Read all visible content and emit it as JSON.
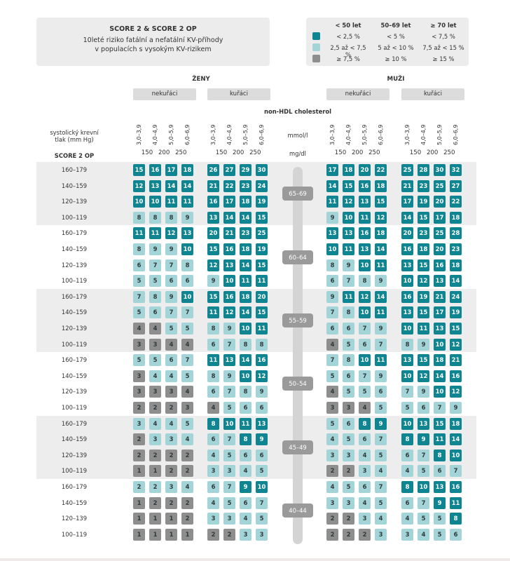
{
  "title": {
    "line1": "SCORE 2 & SCORE 2 OP",
    "line2": "10leté riziko fatální a nefatální KV-příhody",
    "line3": "v populacích s vysokým KV-rizikem"
  },
  "legend": {
    "headers": [
      "< 50 let",
      "50–69 let",
      "≥ 70 let"
    ],
    "rows": [
      {
        "level": "high",
        "values": [
          "< 2,5 %",
          "< 5 %",
          "< 7,5 %"
        ]
      },
      {
        "level": "mid",
        "values": [
          "2,5 až < 7,5 %",
          "5 až < 10 %",
          "7,5 až < 15 %"
        ]
      },
      {
        "level": "low",
        "values": [
          "≥ 7,5 %",
          "≥ 10 %",
          "≥ 15 %"
        ]
      }
    ]
  },
  "colors": {
    "high": "#0e8590",
    "mid": "#a3d5d8",
    "low": "#8e8e8e",
    "high_text": "#ffffff",
    "mid_text": "#2f3a3c",
    "low_text": "#2f3a3c"
  },
  "sex_labels": {
    "women": "ŽENY",
    "men": "MUŽI"
  },
  "smoking_labels": {
    "non": "nekuřáci",
    "smoker": "kuřáci"
  },
  "nonhdl_label": "non-HDL cholesterol",
  "y_label": {
    "line1": "systolický krevní",
    "line2": "tlak (mm Hg)",
    "line3": "SCORE 2 OP"
  },
  "units": {
    "mmol": "mmol/l",
    "mgdl": "mg/dl"
  },
  "chart_data": {
    "type": "heatmap",
    "title": "SCORE 2 & SCORE 2 OP",
    "x_categories": [
      "3,0–3,9",
      "4,0–4,9",
      "5,0–5,9",
      "6,0–6,9"
    ],
    "x_ticks_mgdl": [
      "150",
      "200",
      "250"
    ],
    "bp_categories": [
      "160–179",
      "140–159",
      "120–139",
      "100–119"
    ],
    "age_groups": [
      "65–69",
      "60–64",
      "55–59",
      "50–54",
      "45–49",
      "40–44"
    ],
    "panels": [
      "women-nonsmokers",
      "women-smokers",
      "men-nonsmokers",
      "men-smokers"
    ],
    "values": [
      [
        [
          15,
          16,
          17,
          18
        ],
        [
          26,
          27,
          29,
          30
        ],
        [
          17,
          18,
          20,
          22
        ],
        [
          25,
          28,
          30,
          32
        ]
      ],
      [
        [
          12,
          13,
          14,
          14
        ],
        [
          21,
          22,
          23,
          24
        ],
        [
          14,
          15,
          16,
          18
        ],
        [
          21,
          23,
          25,
          27
        ]
      ],
      [
        [
          10,
          10,
          11,
          11
        ],
        [
          16,
          17,
          18,
          19
        ],
        [
          11,
          12,
          13,
          15
        ],
        [
          17,
          19,
          20,
          22
        ]
      ],
      [
        [
          8,
          8,
          8,
          9
        ],
        [
          13,
          14,
          14,
          15
        ],
        [
          9,
          10,
          11,
          12
        ],
        [
          14,
          15,
          17,
          18
        ]
      ],
      [
        [
          11,
          11,
          12,
          13
        ],
        [
          20,
          21,
          23,
          25
        ],
        [
          13,
          13,
          16,
          18
        ],
        [
          20,
          23,
          25,
          28
        ]
      ],
      [
        [
          8,
          9,
          9,
          10
        ],
        [
          15,
          16,
          18,
          19
        ],
        [
          10,
          11,
          13,
          14
        ],
        [
          16,
          18,
          20,
          23
        ]
      ],
      [
        [
          6,
          7,
          7,
          8
        ],
        [
          12,
          13,
          14,
          15
        ],
        [
          8,
          9,
          10,
          11
        ],
        [
          13,
          15,
          16,
          18
        ]
      ],
      [
        [
          5,
          5,
          6,
          6
        ],
        [
          9,
          10,
          11,
          11
        ],
        [
          6,
          7,
          8,
          9
        ],
        [
          10,
          12,
          13,
          14
        ]
      ],
      [
        [
          7,
          8,
          9,
          10
        ],
        [
          15,
          16,
          18,
          20
        ],
        [
          9,
          11,
          12,
          14
        ],
        [
          16,
          19,
          21,
          24
        ]
      ],
      [
        [
          5,
          6,
          7,
          7
        ],
        [
          11,
          12,
          14,
          15
        ],
        [
          7,
          8,
          10,
          11
        ],
        [
          13,
          15,
          17,
          19
        ]
      ],
      [
        [
          4,
          4,
          5,
          5
        ],
        [
          8,
          9,
          10,
          11
        ],
        [
          6,
          6,
          7,
          9
        ],
        [
          10,
          11,
          13,
          15
        ]
      ],
      [
        [
          3,
          3,
          4,
          4
        ],
        [
          6,
          7,
          8,
          8
        ],
        [
          4,
          5,
          6,
          7
        ],
        [
          8,
          9,
          10,
          12
        ]
      ],
      [
        [
          5,
          5,
          6,
          7
        ],
        [
          11,
          13,
          14,
          16
        ],
        [
          7,
          8,
          10,
          11
        ],
        [
          13,
          15,
          18,
          21
        ]
      ],
      [
        [
          3,
          4,
          4,
          5
        ],
        [
          8,
          9,
          10,
          12
        ],
        [
          5,
          6,
          7,
          9
        ],
        [
          10,
          12,
          14,
          16
        ]
      ],
      [
        [
          3,
          3,
          3,
          4
        ],
        [
          6,
          7,
          8,
          9
        ],
        [
          4,
          5,
          5,
          6
        ],
        [
          7,
          9,
          10,
          12
        ]
      ],
      [
        [
          2,
          2,
          2,
          3
        ],
        [
          4,
          5,
          6,
          6
        ],
        [
          3,
          3,
          4,
          5
        ],
        [
          5,
          6,
          7,
          9
        ]
      ],
      [
        [
          3,
          4,
          4,
          5
        ],
        [
          8,
          10,
          11,
          13
        ],
        [
          5,
          6,
          8,
          9
        ],
        [
          10,
          13,
          15,
          18
        ]
      ],
      [
        [
          2,
          3,
          3,
          4
        ],
        [
          6,
          7,
          8,
          9
        ],
        [
          4,
          5,
          6,
          7
        ],
        [
          8,
          9,
          11,
          14
        ]
      ],
      [
        [
          2,
          2,
          2,
          2
        ],
        [
          4,
          5,
          6,
          6
        ],
        [
          3,
          3,
          4,
          5
        ],
        [
          6,
          7,
          8,
          10
        ]
      ],
      [
        [
          1,
          1,
          2,
          2
        ],
        [
          3,
          3,
          4,
          5
        ],
        [
          2,
          2,
          3,
          4
        ],
        [
          4,
          5,
          6,
          7
        ]
      ],
      [
        [
          2,
          2,
          3,
          4
        ],
        [
          6,
          7,
          9,
          10
        ],
        [
          4,
          5,
          6,
          7
        ],
        [
          8,
          10,
          13,
          16
        ]
      ],
      [
        [
          1,
          2,
          2,
          2
        ],
        [
          4,
          5,
          6,
          7
        ],
        [
          3,
          3,
          4,
          5
        ],
        [
          6,
          7,
          9,
          11
        ]
      ],
      [
        [
          1,
          1,
          1,
          2
        ],
        [
          3,
          3,
          4,
          5
        ],
        [
          2,
          2,
          3,
          4
        ],
        [
          4,
          5,
          5,
          8
        ]
      ],
      [
        [
          1,
          1,
          1,
          1
        ],
        [
          2,
          2,
          3,
          3
        ],
        [
          2,
          2,
          2,
          3
        ],
        [
          3,
          4,
          5,
          6
        ]
      ]
    ],
    "levels": [
      [
        [
          "H",
          "H",
          "H",
          "H"
        ],
        [
          "H",
          "H",
          "H",
          "H"
        ],
        [
          "H",
          "H",
          "H",
          "H"
        ],
        [
          "H",
          "H",
          "H",
          "H"
        ]
      ],
      [
        [
          "H",
          "H",
          "H",
          "H"
        ],
        [
          "H",
          "H",
          "H",
          "H"
        ],
        [
          "H",
          "H",
          "H",
          "H"
        ],
        [
          "H",
          "H",
          "H",
          "H"
        ]
      ],
      [
        [
          "H",
          "H",
          "H",
          "H"
        ],
        [
          "H",
          "H",
          "H",
          "H"
        ],
        [
          "H",
          "H",
          "H",
          "H"
        ],
        [
          "H",
          "H",
          "H",
          "H"
        ]
      ],
      [
        [
          "M",
          "M",
          "M",
          "M"
        ],
        [
          "H",
          "H",
          "H",
          "H"
        ],
        [
          "M",
          "H",
          "H",
          "H"
        ],
        [
          "H",
          "H",
          "H",
          "H"
        ]
      ],
      [
        [
          "H",
          "H",
          "H",
          "H"
        ],
        [
          "H",
          "H",
          "H",
          "H"
        ],
        [
          "H",
          "H",
          "H",
          "H"
        ],
        [
          "H",
          "H",
          "H",
          "H"
        ]
      ],
      [
        [
          "M",
          "M",
          "M",
          "H"
        ],
        [
          "H",
          "H",
          "H",
          "H"
        ],
        [
          "H",
          "H",
          "H",
          "H"
        ],
        [
          "H",
          "H",
          "H",
          "H"
        ]
      ],
      [
        [
          "M",
          "M",
          "M",
          "M"
        ],
        [
          "H",
          "H",
          "H",
          "H"
        ],
        [
          "M",
          "M",
          "H",
          "H"
        ],
        [
          "H",
          "H",
          "H",
          "H"
        ]
      ],
      [
        [
          "M",
          "M",
          "M",
          "M"
        ],
        [
          "M",
          "H",
          "H",
          "H"
        ],
        [
          "M",
          "M",
          "M",
          "M"
        ],
        [
          "H",
          "H",
          "H",
          "H"
        ]
      ],
      [
        [
          "M",
          "M",
          "M",
          "H"
        ],
        [
          "H",
          "H",
          "H",
          "H"
        ],
        [
          "M",
          "H",
          "H",
          "H"
        ],
        [
          "H",
          "H",
          "H",
          "H"
        ]
      ],
      [
        [
          "M",
          "M",
          "M",
          "M"
        ],
        [
          "H",
          "H",
          "H",
          "H"
        ],
        [
          "M",
          "M",
          "H",
          "H"
        ],
        [
          "H",
          "H",
          "H",
          "H"
        ]
      ],
      [
        [
          "L",
          "L",
          "M",
          "M"
        ],
        [
          "M",
          "M",
          "H",
          "H"
        ],
        [
          "M",
          "M",
          "M",
          "M"
        ],
        [
          "H",
          "H",
          "H",
          "H"
        ]
      ],
      [
        [
          "L",
          "L",
          "L",
          "L"
        ],
        [
          "M",
          "M",
          "M",
          "M"
        ],
        [
          "L",
          "M",
          "M",
          "M"
        ],
        [
          "M",
          "M",
          "H",
          "H"
        ]
      ],
      [
        [
          "M",
          "M",
          "M",
          "M"
        ],
        [
          "H",
          "H",
          "H",
          "H"
        ],
        [
          "M",
          "M",
          "H",
          "H"
        ],
        [
          "H",
          "H",
          "H",
          "H"
        ]
      ],
      [
        [
          "L",
          "M",
          "M",
          "M"
        ],
        [
          "M",
          "M",
          "H",
          "H"
        ],
        [
          "M",
          "M",
          "M",
          "M"
        ],
        [
          "H",
          "H",
          "H",
          "H"
        ]
      ],
      [
        [
          "L",
          "L",
          "L",
          "L"
        ],
        [
          "M",
          "M",
          "M",
          "M"
        ],
        [
          "L",
          "M",
          "M",
          "M"
        ],
        [
          "M",
          "M",
          "H",
          "H"
        ]
      ],
      [
        [
          "L",
          "L",
          "L",
          "L"
        ],
        [
          "L",
          "M",
          "M",
          "M"
        ],
        [
          "L",
          "L",
          "L",
          "M"
        ],
        [
          "M",
          "M",
          "M",
          "M"
        ]
      ],
      [
        [
          "M",
          "M",
          "M",
          "M"
        ],
        [
          "H",
          "H",
          "H",
          "H"
        ],
        [
          "M",
          "M",
          "H",
          "H"
        ],
        [
          "H",
          "H",
          "H",
          "H"
        ]
      ],
      [
        [
          "L",
          "M",
          "M",
          "M"
        ],
        [
          "M",
          "M",
          "H",
          "H"
        ],
        [
          "M",
          "M",
          "M",
          "M"
        ],
        [
          "H",
          "H",
          "H",
          "H"
        ]
      ],
      [
        [
          "L",
          "L",
          "L",
          "L"
        ],
        [
          "M",
          "M",
          "M",
          "M"
        ],
        [
          "M",
          "M",
          "M",
          "M"
        ],
        [
          "M",
          "M",
          "H",
          "H"
        ]
      ],
      [
        [
          "L",
          "L",
          "L",
          "L"
        ],
        [
          "M",
          "M",
          "M",
          "M"
        ],
        [
          "L",
          "L",
          "M",
          "M"
        ],
        [
          "M",
          "M",
          "M",
          "M"
        ]
      ],
      [
        [
          "M",
          "M",
          "M",
          "M"
        ],
        [
          "M",
          "M",
          "H",
          "H"
        ],
        [
          "M",
          "M",
          "M",
          "M"
        ],
        [
          "H",
          "H",
          "H",
          "H"
        ]
      ],
      [
        [
          "L",
          "L",
          "L",
          "L"
        ],
        [
          "M",
          "M",
          "M",
          "M"
        ],
        [
          "M",
          "M",
          "M",
          "M"
        ],
        [
          "M",
          "M",
          "H",
          "H"
        ]
      ],
      [
        [
          "L",
          "L",
          "L",
          "L"
        ],
        [
          "M",
          "M",
          "M",
          "M"
        ],
        [
          "L",
          "L",
          "M",
          "M"
        ],
        [
          "M",
          "M",
          "M",
          "H"
        ]
      ],
      [
        [
          "L",
          "L",
          "L",
          "L"
        ],
        [
          "L",
          "L",
          "M",
          "M"
        ],
        [
          "L",
          "L",
          "L",
          "M"
        ],
        [
          "M",
          "M",
          "M",
          "M"
        ]
      ]
    ]
  }
}
